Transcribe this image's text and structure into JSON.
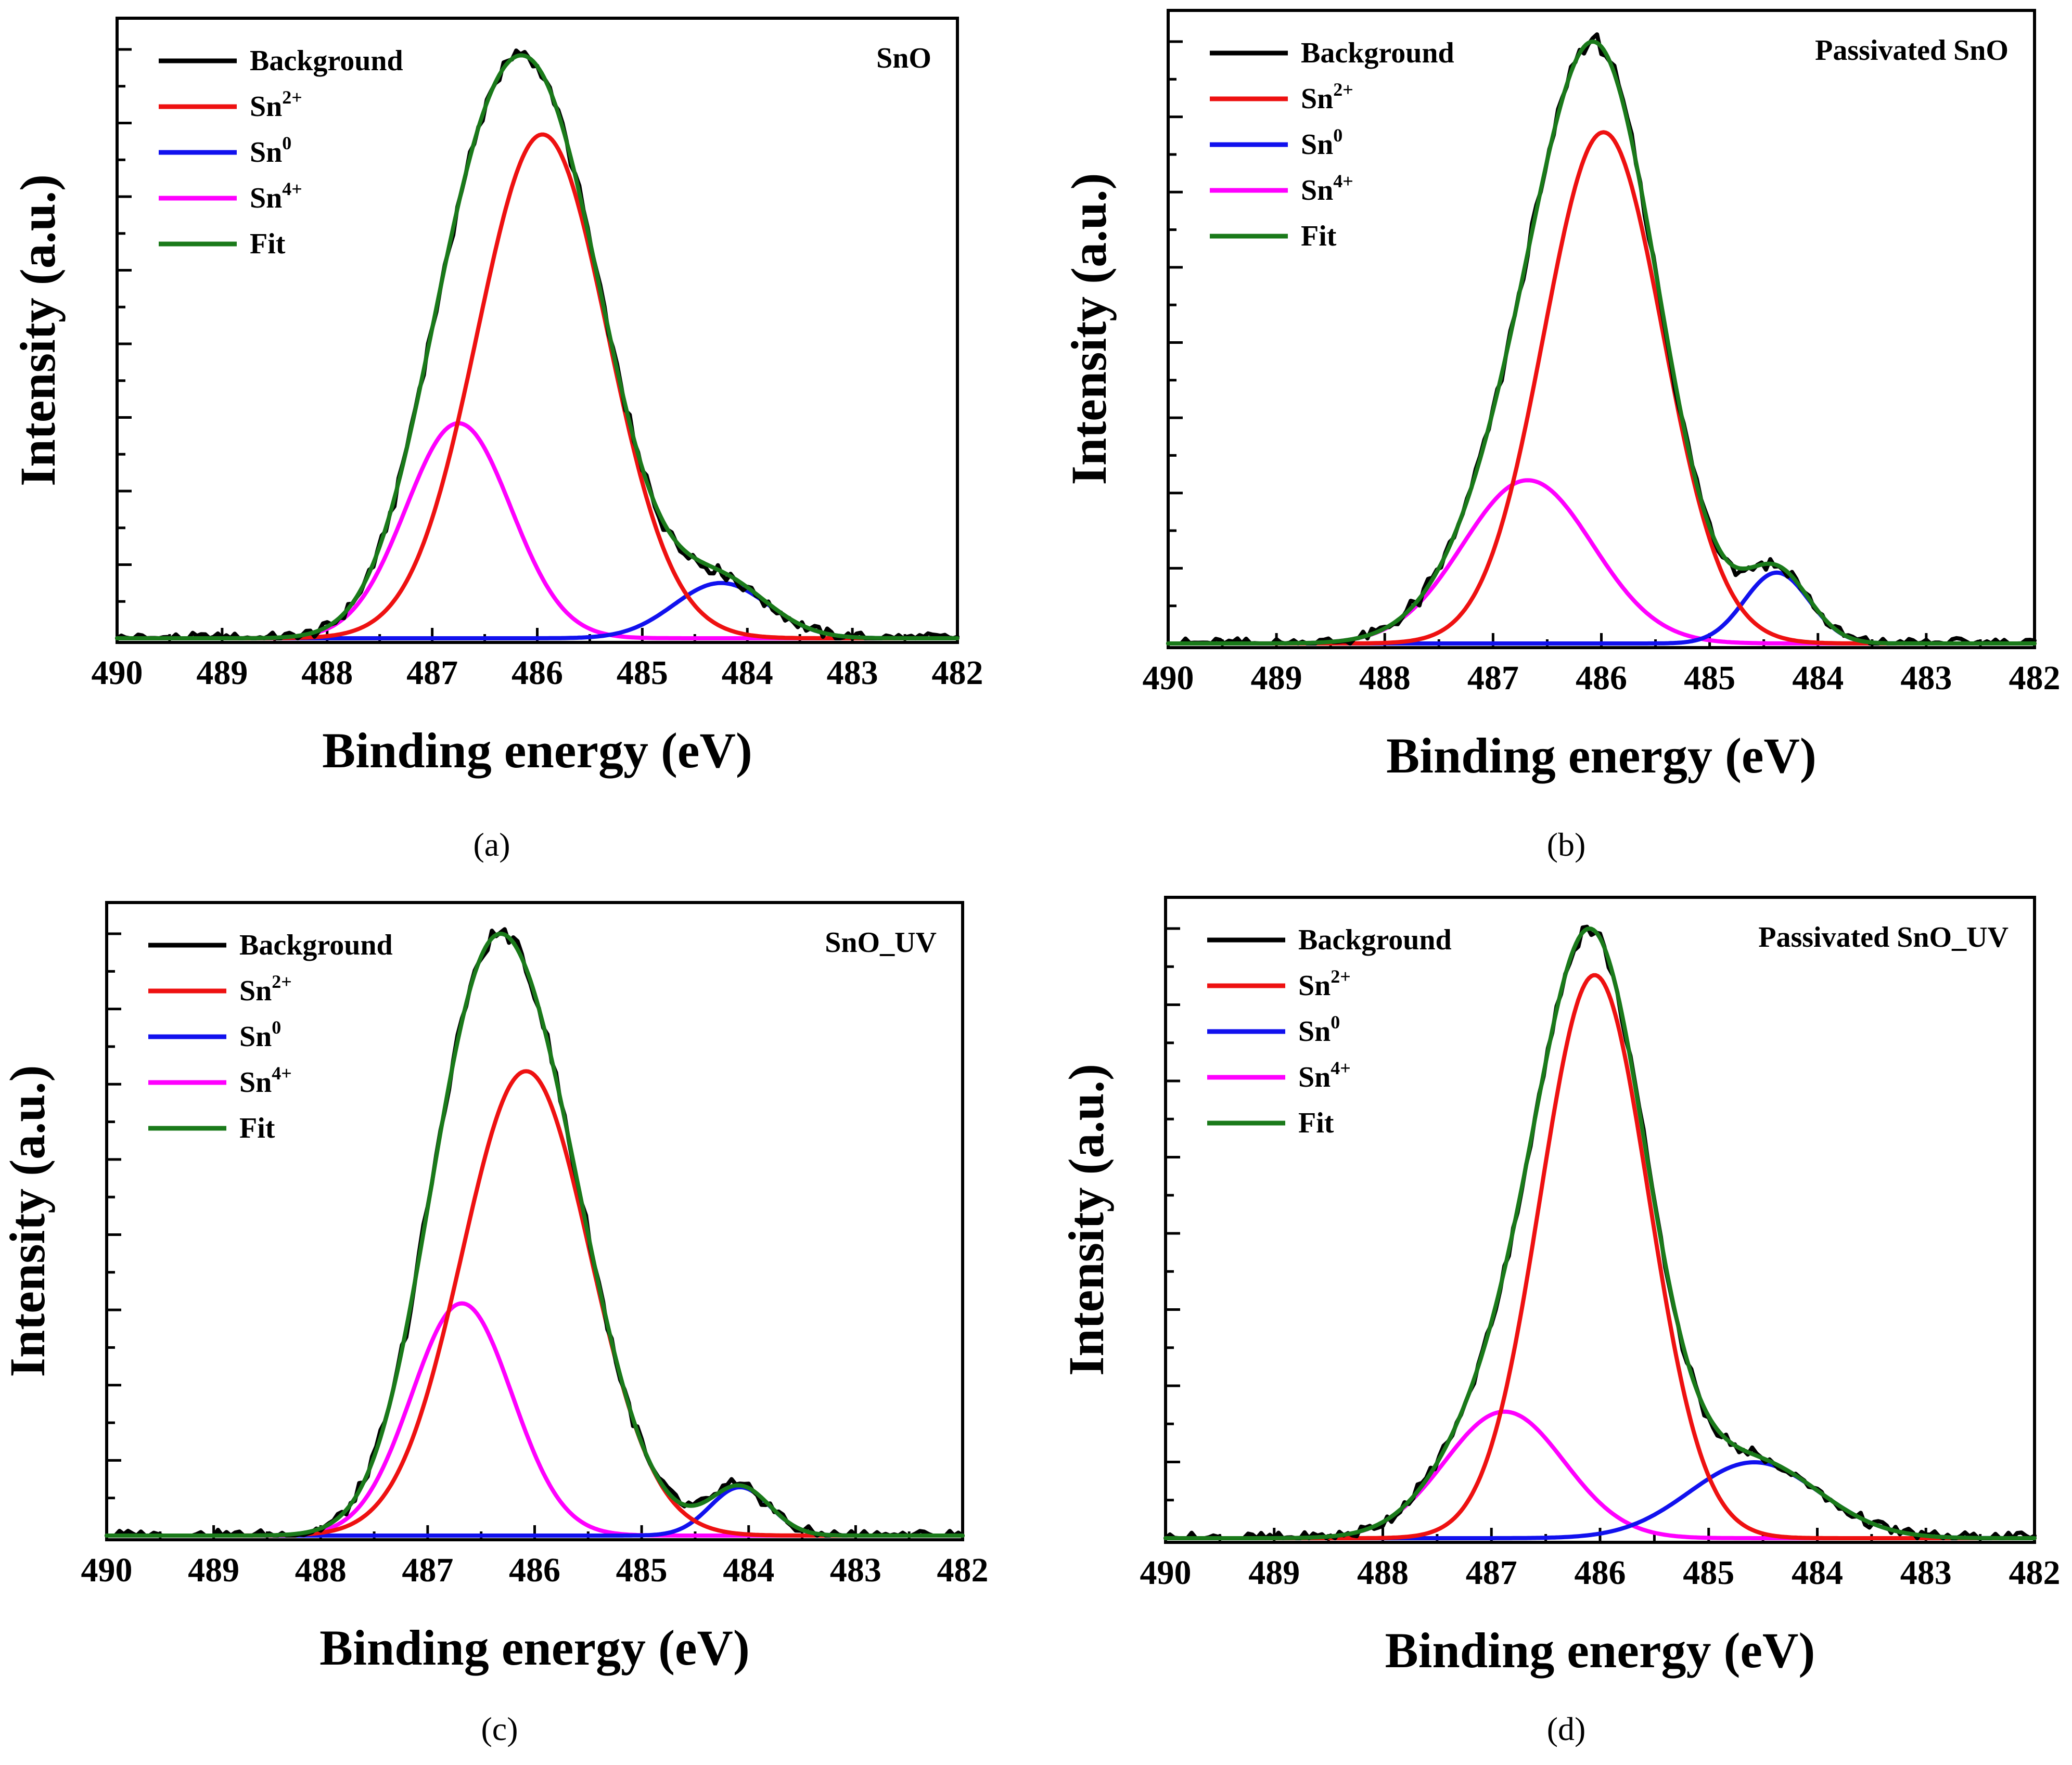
{
  "figure": {
    "x_tick_labels": [
      "490",
      "489",
      "488",
      "487",
      "486",
      "485",
      "484",
      "483",
      "482"
    ],
    "colors": {
      "Background": "#000000",
      "Sn2+": "#ee1111",
      "Sn0": "#1111ee",
      "Sn4+": "#ff00ff",
      "Fit": "#1a7a1a"
    }
  },
  "chart_data": [
    {
      "type": "line",
      "caption": "(a)",
      "sample": "SnO",
      "xlabel": "Binding energy (eV)",
      "ylabel": "Intensity (a.u.)",
      "xlim": [
        490,
        482
      ],
      "ylim": [
        0,
        1.0
      ],
      "legend": [
        {
          "label": "Background",
          "base": "Background",
          "sup": ""
        },
        {
          "label": "Sn2+",
          "base": "Sn",
          "sup": "2+"
        },
        {
          "label": "Sn0",
          "base": "Sn",
          "sup": "0"
        },
        {
          "label": "Sn4+",
          "base": "Sn",
          "sup": "4+"
        },
        {
          "label": "Fit",
          "base": "Fit",
          "sup": ""
        }
      ],
      "components": {
        "Sn2+": {
          "center": 485.95,
          "amplitude": 0.82,
          "sigma": 0.62
        },
        "Sn0": {
          "center": 484.25,
          "amplitude": 0.09,
          "sigma": 0.45
        },
        "Sn4+": {
          "center": 486.75,
          "amplitude": 0.35,
          "sigma": 0.5
        }
      },
      "peak_max": 0.99
    },
    {
      "type": "line",
      "caption": "(b)",
      "sample": "Passivated SnO",
      "xlabel": "Binding energy (eV)",
      "ylabel": "Intensity (a.u.)",
      "xlim": [
        490,
        482
      ],
      "ylim": [
        0,
        1.0
      ],
      "legend": [
        {
          "label": "Background",
          "base": "Background",
          "sup": ""
        },
        {
          "label": "Sn2+",
          "base": "Sn",
          "sup": "2+"
        },
        {
          "label": "Sn0",
          "base": "Sn",
          "sup": "0"
        },
        {
          "label": "Sn4+",
          "base": "Sn",
          "sup": "4+"
        },
        {
          "label": "Fit",
          "base": "Fit",
          "sup": ""
        }
      ],
      "components": {
        "Sn2+": {
          "center": 485.98,
          "amplitude": 0.83,
          "sigma": 0.55
        },
        "Sn0": {
          "center": 484.38,
          "amplitude": 0.115,
          "sigma": 0.3
        },
        "Sn4+": {
          "center": 486.68,
          "amplitude": 0.265,
          "sigma": 0.6
        }
      },
      "peak_max": 1.0
    },
    {
      "type": "line",
      "caption": "(c)",
      "sample": "SnO_UV",
      "xlabel": "Binding energy (eV)",
      "ylabel": "Intensity (a.u.)",
      "xlim": [
        490,
        482
      ],
      "ylim": [
        0,
        1.0
      ],
      "legend": [
        {
          "label": "Background",
          "base": "Background",
          "sup": ""
        },
        {
          "label": "Sn2+",
          "base": "Sn",
          "sup": "2+"
        },
        {
          "label": "Sn0",
          "base": "Sn",
          "sup": "0"
        },
        {
          "label": "Sn4+",
          "base": "Sn",
          "sup": "4+"
        },
        {
          "label": "Fit",
          "base": "Fit",
          "sup": ""
        }
      ],
      "components": {
        "Sn2+": {
          "center": 486.08,
          "amplitude": 0.72,
          "sigma": 0.6
        },
        "Sn0": {
          "center": 484.08,
          "amplitude": 0.075,
          "sigma": 0.28
        },
        "Sn4+": {
          "center": 486.68,
          "amplitude": 0.36,
          "sigma": 0.47
        }
      },
      "peak_max": 1.0
    },
    {
      "type": "line",
      "caption": "(d)",
      "sample": "Passivated SnO_UV",
      "xlabel": "Binding energy (eV)",
      "ylabel": "Intensity (a.u.)",
      "xlim": [
        490,
        482
      ],
      "ylim": [
        0,
        1.0
      ],
      "legend": [
        {
          "label": "Background",
          "base": "Background",
          "sup": ""
        },
        {
          "label": "Sn2+",
          "base": "Sn",
          "sup": "2+"
        },
        {
          "label": "Sn0",
          "base": "Sn",
          "sup": "0"
        },
        {
          "label": "Sn4+",
          "base": "Sn",
          "sup": "4+"
        },
        {
          "label": "Fit",
          "base": "Fit",
          "sup": ""
        }
      ],
      "components": {
        "Sn2+": {
          "center": 486.05,
          "amplitude": 0.89,
          "sigma": 0.5
        },
        "Sn0": {
          "center": 484.58,
          "amplitude": 0.12,
          "sigma": 0.6
        },
        "Sn4+": {
          "center": 486.88,
          "amplitude": 0.2,
          "sigma": 0.55
        }
      },
      "peak_max": 1.0
    }
  ]
}
